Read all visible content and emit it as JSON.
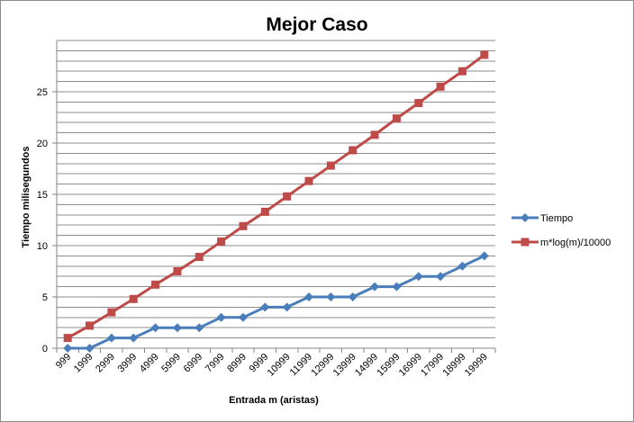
{
  "chart_data": {
    "type": "line",
    "title": "Mejor Caso",
    "xlabel": "Entrada m (aristas)",
    "ylabel": "Tiempo milisegundos",
    "categories": [
      "999",
      "1999",
      "2999",
      "3999",
      "4999",
      "5999",
      "6999",
      "7999",
      "8999",
      "9999",
      "10999",
      "11999",
      "12999",
      "13999",
      "14999",
      "15999",
      "16999",
      "17999",
      "18999",
      "19999"
    ],
    "ylim": [
      0,
      30
    ],
    "yticks": [
      0,
      5,
      10,
      15,
      20,
      25
    ],
    "gridline_step": 1,
    "grid": true,
    "legend_position": "right",
    "series": [
      {
        "name": "Tiempo",
        "color": "#4A7EBB",
        "marker": "diamond",
        "values": [
          0,
          0,
          1,
          1,
          2,
          2,
          2,
          3,
          3,
          4,
          4,
          5,
          5,
          5,
          6,
          6,
          7,
          7,
          8,
          9
        ]
      },
      {
        "name": "m*log(m)/10000",
        "color": "#BE4B48",
        "marker": "square",
        "values": [
          1.0,
          2.2,
          3.5,
          4.8,
          6.2,
          7.5,
          8.9,
          10.4,
          11.9,
          13.3,
          14.8,
          16.3,
          17.8,
          19.3,
          20.8,
          22.4,
          23.9,
          25.5,
          27.0,
          28.6
        ]
      }
    ]
  }
}
